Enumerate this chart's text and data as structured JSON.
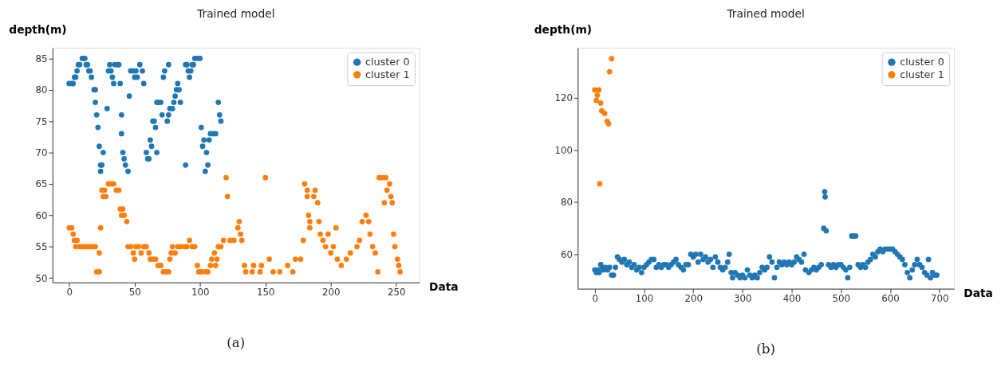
{
  "chart_data": [
    {
      "type": "scatter",
      "title": "Trained model",
      "xlabel": "Data",
      "ylabel": "depth(m)",
      "annotations": [
        "(a)"
      ],
      "xlim": [
        -12.75,
        267.75
      ],
      "ylim": [
        49.3,
        86.7
      ],
      "xticks": [
        0,
        50,
        100,
        150,
        200,
        250
      ],
      "yticks": [
        50,
        55,
        60,
        65,
        70,
        75,
        80,
        85
      ],
      "legend": "top right",
      "marker": "circle",
      "grid": false,
      "series": [
        {
          "name": "cluster 0",
          "color": "#1f77b4",
          "x": [
            0,
            2,
            3,
            4,
            5,
            6,
            7,
            8,
            10,
            11,
            12,
            13,
            14,
            15,
            16,
            17,
            19,
            20,
            20,
            21,
            22,
            23,
            24,
            24,
            25,
            26,
            29,
            30,
            31,
            32,
            33,
            34,
            35,
            37,
            38,
            39,
            40,
            40,
            41,
            42,
            43,
            45,
            46,
            47,
            49,
            50,
            51,
            52,
            54,
            56,
            57,
            59,
            60,
            61,
            62,
            63,
            64,
            65,
            66,
            67,
            67,
            68,
            70,
            71,
            72,
            73,
            76,
            75,
            76,
            77,
            79,
            80,
            81,
            82,
            83,
            84,
            85,
            89,
            89,
            90,
            91,
            92,
            93,
            94,
            95,
            96,
            98,
            100,
            101,
            102,
            103,
            104,
            105,
            106,
            107,
            108,
            110,
            112,
            114,
            115,
            116
          ],
          "values": [
            81,
            81,
            81,
            82,
            82,
            83,
            84,
            84,
            85,
            85,
            85,
            84,
            84,
            83,
            83,
            82,
            80,
            80,
            78,
            76,
            74,
            71,
            68,
            67,
            68,
            70,
            77,
            83,
            84,
            83,
            82,
            81,
            84,
            84,
            84,
            81,
            76,
            73,
            70,
            69,
            68,
            67,
            79,
            83,
            83,
            82,
            83,
            82,
            84,
            83,
            81,
            70,
            69,
            69,
            72,
            71,
            75,
            75,
            74,
            70,
            78,
            78,
            78,
            76,
            82,
            83,
            84,
            75,
            76,
            77,
            77,
            78,
            79,
            80,
            81,
            80,
            78,
            68,
            84,
            84,
            83,
            82,
            83,
            84,
            84,
            85,
            85,
            85,
            74,
            71,
            72,
            67,
            70,
            68,
            72,
            73,
            73,
            73,
            78,
            76,
            75
          ]
        },
        {
          "name": "cluster 1",
          "color": "#ff7f0e",
          "x": [
            0,
            2,
            3,
            4,
            5,
            6,
            8,
            10,
            12,
            14,
            16,
            18,
            20,
            21,
            23,
            23,
            24,
            25,
            26,
            27,
            28,
            30,
            32,
            34,
            36,
            38,
            39,
            40,
            41,
            42,
            44,
            45,
            47,
            49,
            50,
            51,
            53,
            55,
            57,
            59,
            61,
            62,
            64,
            66,
            68,
            70,
            72,
            74,
            76,
            77,
            78,
            79,
            81,
            83,
            85,
            88,
            90,
            92,
            94,
            96,
            98,
            99,
            101,
            104,
            106,
            108,
            109,
            111,
            112,
            113,
            114,
            116,
            118,
            120,
            121,
            123,
            126,
            129,
            130,
            131,
            132,
            134,
            135,
            140,
            141,
            146,
            147,
            150,
            153,
            156,
            161,
            167,
            171,
            173,
            177,
            179,
            180,
            182,
            182,
            183,
            184,
            184,
            187,
            188,
            190,
            191,
            192,
            194,
            196,
            198,
            200,
            202,
            204,
            205,
            208,
            212,
            215,
            220,
            222,
            224,
            227,
            229,
            230,
            232,
            234,
            236,
            237,
            239,
            242,
            241,
            243,
            245,
            246,
            247,
            248,
            249,
            251,
            252,
            253
          ],
          "values": [
            58,
            58,
            57,
            56,
            55,
            56,
            55,
            55,
            55,
            55,
            55,
            55,
            55,
            51,
            51,
            54,
            58,
            64,
            63,
            64,
            63,
            65,
            65,
            65,
            64,
            64,
            61,
            60,
            61,
            60,
            59,
            55,
            55,
            54,
            53,
            55,
            55,
            54,
            55,
            55,
            54,
            53,
            53,
            53,
            52,
            52,
            51,
            51,
            51,
            53,
            54,
            55,
            54,
            55,
            55,
            55,
            55,
            56,
            55,
            55,
            52,
            51,
            51,
            51,
            51,
            52,
            53,
            54,
            52,
            53,
            55,
            55,
            56,
            66,
            63,
            56,
            56,
            58,
            59,
            57,
            56,
            52,
            51,
            51,
            52,
            51,
            52,
            66,
            53,
            51,
            51,
            52,
            51,
            53,
            53,
            56,
            65,
            64,
            63,
            60,
            59,
            58,
            63,
            64,
            62,
            59,
            57,
            56,
            55,
            57,
            54,
            55,
            58,
            53,
            52,
            53,
            54,
            55,
            56,
            59,
            60,
            59,
            57,
            55,
            54,
            51,
            66,
            66,
            66,
            62,
            64,
            65,
            63,
            62,
            57,
            55,
            53,
            52,
            51
          ]
        }
      ]
    },
    {
      "type": "scatter",
      "title": "Trained model",
      "xlabel": "Data",
      "ylabel": "depth(m)",
      "annotations": [
        "(b)"
      ],
      "xlim": [
        -34.75,
        729.75
      ],
      "ylim": [
        46.8,
        139.2
      ],
      "xticks": [
        0,
        100,
        200,
        300,
        400,
        500,
        600,
        700
      ],
      "yticks": [
        60,
        80,
        100,
        120
      ],
      "legend": "top right",
      "marker": "circle",
      "grid": false,
      "series": [
        {
          "name": "cluster 0",
          "color": "#1f77b4",
          "x": [
            0,
            3,
            6,
            9,
            12,
            15,
            18,
            22,
            26,
            30,
            34,
            38,
            42,
            46,
            50,
            55,
            60,
            65,
            70,
            75,
            80,
            85,
            90,
            95,
            100,
            105,
            110,
            115,
            120,
            125,
            130,
            135,
            140,
            145,
            150,
            155,
            160,
            165,
            170,
            175,
            180,
            185,
            190,
            195,
            200,
            205,
            210,
            215,
            220,
            225,
            230,
            235,
            240,
            245,
            250,
            255,
            260,
            265,
            270,
            273,
            277,
            280,
            285,
            290,
            295,
            300,
            305,
            310,
            315,
            320,
            325,
            330,
            335,
            340,
            345,
            350,
            355,
            360,
            365,
            370,
            375,
            380,
            385,
            390,
            395,
            400,
            405,
            410,
            415,
            420,
            425,
            428,
            435,
            440,
            445,
            450,
            455,
            460,
            465,
            467,
            468,
            470,
            475,
            480,
            485,
            490,
            495,
            500,
            505,
            510,
            514,
            518,
            522,
            526,
            530,
            535,
            540,
            545,
            550,
            555,
            560,
            565,
            570,
            575,
            580,
            585,
            590,
            595,
            600,
            605,
            610,
            615,
            620,
            625,
            630,
            635,
            640,
            645,
            650,
            655,
            660,
            665,
            670,
            675,
            678,
            682,
            686,
            690,
            695
          ],
          "values": [
            54,
            53,
            54,
            53,
            56,
            55,
            54,
            55,
            54,
            55,
            52,
            52,
            55,
            59,
            58,
            57,
            58,
            56,
            57,
            55,
            56,
            54,
            55,
            53,
            55,
            56,
            57,
            58,
            58,
            55,
            56,
            55,
            56,
            56,
            55,
            56,
            57,
            58,
            56,
            55,
            54,
            56,
            56,
            60,
            59,
            60,
            57,
            60,
            58,
            59,
            57,
            58,
            55,
            59,
            57,
            55,
            54,
            55,
            57,
            60,
            53,
            51,
            53,
            52,
            51,
            52,
            51,
            54,
            52,
            51,
            52,
            51,
            53,
            55,
            54,
            55,
            59,
            57,
            51,
            55,
            57,
            56,
            57,
            56,
            57,
            56,
            57,
            59,
            58,
            57,
            60,
            54,
            53,
            54,
            55,
            54,
            55,
            56,
            70,
            84,
            82,
            69,
            56,
            55,
            56,
            55,
            56,
            56,
            55,
            54,
            51,
            55,
            67,
            67,
            67,
            56,
            55,
            56,
            55,
            57,
            58,
            60,
            59,
            61,
            62,
            61,
            62,
            62,
            62,
            62,
            61,
            60,
            59,
            58,
            56,
            53,
            51,
            54,
            56,
            58,
            56,
            55,
            53,
            52,
            58,
            51,
            53,
            52,
            52
          ]
        },
        {
          "name": "cluster 1",
          "color": "#ff7f0e",
          "x": [
            0,
            3,
            5,
            8,
            12,
            10,
            14,
            20,
            25,
            28,
            30,
            34
          ],
          "values": [
            123,
            119,
            121,
            123,
            118,
            87,
            115,
            114,
            111,
            110,
            130,
            135
          ]
        }
      ]
    }
  ]
}
